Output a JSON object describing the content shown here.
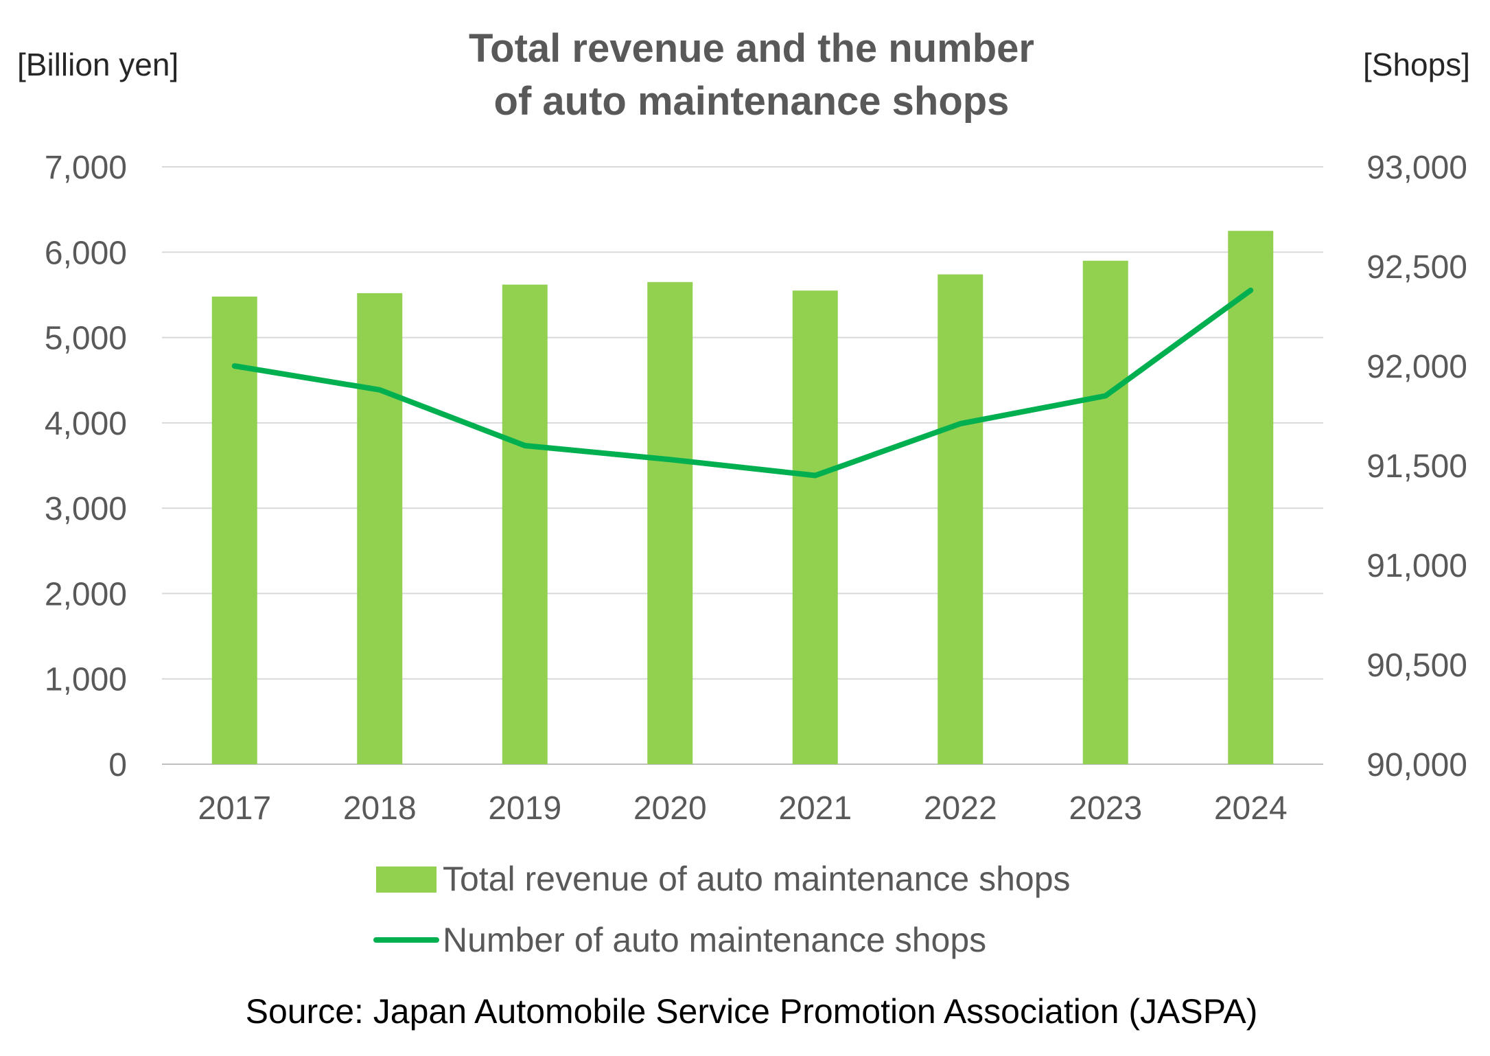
{
  "chart_data": {
    "type": "bar",
    "title_lines": [
      "Total revenue and the number",
      "of auto maintenance shops"
    ],
    "ylabel_left": "[Billion yen]",
    "ylabel_right": "[Shops]",
    "categories": [
      "2017",
      "2018",
      "2019",
      "2020",
      "2021",
      "2022",
      "2023",
      "2024"
    ],
    "ylim_left": [
      0,
      7000
    ],
    "ylim_right": [
      90000,
      93000
    ],
    "yticks_left": [
      "0",
      "1,000",
      "2,000",
      "3,000",
      "4,000",
      "5,000",
      "6,000",
      "7,000"
    ],
    "yticks_right": [
      "90,000",
      "90,500",
      "91,000",
      "91,500",
      "92,000",
      "92,500",
      "93,000"
    ],
    "grid": true,
    "legend_position": "bottom",
    "series": [
      {
        "name": "Total revenue of auto maintenance shops",
        "type": "bar",
        "axis": "left",
        "color": "#92D050",
        "values": [
          5480,
          5520,
          5620,
          5650,
          5550,
          5740,
          5900,
          6250
        ]
      },
      {
        "name": "Number of auto maintenance shops",
        "type": "line",
        "axis": "right",
        "color": "#00B050",
        "values": [
          92000,
          91880,
          91600,
          91530,
          91450,
          91710,
          91850,
          92380
        ]
      }
    ]
  },
  "source": "Source: Japan Automobile Service Promotion Association (JASPA)"
}
